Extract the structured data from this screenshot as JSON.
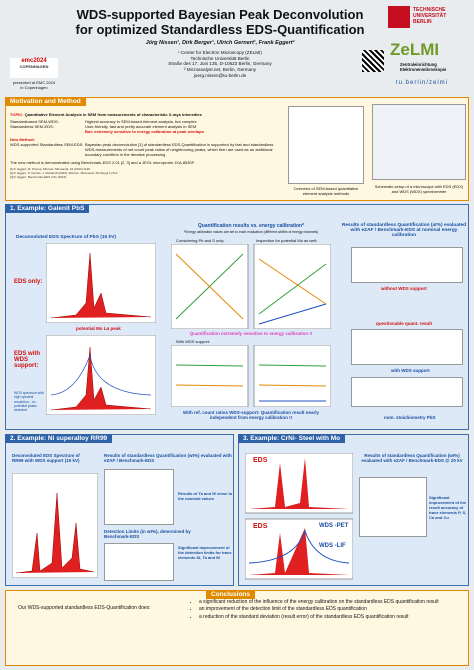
{
  "header": {
    "title_lines": [
      "WDS-supported Bayesian Peak Deconvolution",
      "for optimized Standardless EDS-Quantification"
    ],
    "authors": "Jörg Nissen¹, Dirk Berger¹, Ulrich Gernert¹, Frank Eggert²",
    "affiliations": [
      "¹ Center for Electron Microscopy (ZELMI)",
      "Technische Universität Berlin",
      "Straße des 17. Juni 135, D-10623 Berlin, Germany",
      "² Microanalyst.net, Berlin, Germany",
      "joerg.nissen@tu-berlin.de"
    ],
    "badge": {
      "logo_top": "emc2024",
      "logo_bottom": "COPENHAGEN",
      "text": [
        "presented at EMC 2024",
        "in Copenhagen"
      ]
    },
    "tu_logo": [
      "TECHNISCHE",
      "UNIVERSITÄT",
      "BERLIN"
    ],
    "zelmi": "ZeLMI",
    "zelmi_sub": [
      "Zentraleinrichtung",
      "Elektronenmikroskopie"
    ],
    "url": "tu.berlin/zelmi"
  },
  "motivation": {
    "heading": "Motivation and Method",
    "topic_label": "TOPIC:",
    "topic": "Quantitative Element Analysis in SEM from measurements of characteristic X-rays intensities",
    "methods": [
      {
        "name": "Standardbased SEM-WDS:",
        "text": "Highest accuracy in SEM-based element analysis, but complex"
      },
      {
        "name": "Standardless SEM-EDS:",
        "text": "User-friendly, fast and pretty accurate element analysis in SEM"
      },
      {
        "name": "",
        "text": "But: extremely sensitive to energy calibration at peak overlaps"
      }
    ],
    "new_label": "New Method:",
    "new_name": "WDS-supported Standardless SEM-EDS:",
    "new_text": "Bayesian peak deconvolution [1] of standardless EDS-Quantification is supported by fast and standardless WDS-measurements of net count peak ratios of neighbouring peaks, which then are used as an additional boundary condition in the iterative processing",
    "benchmark": "The new method is demonstrated using Benchmark-EDS 2.01 [2, 3] and a JEOL microprobe JXA-8530F.",
    "refs": [
      "[1] F. Eggert, M. Procop, Microsc. Microanal. 16 (2010) 1136",
      "[2] F. Eggert, P. Camus, J. Ruhlandt (2023), Microsc. Microanal. 29 (Suppl 1) 512",
      "[3] F. Eggert, Benchmark-EDS 2.01 (2024)"
    ],
    "fig_left": "Overview of SEM-based quantitative element analysis methods",
    "fig_right": "Schematic setup of a microscope with EDS (EDX) and WDS (WDX) spectrometer"
  },
  "example1": {
    "heading": "1. Example:   Galenit PbS",
    "spectrum_title": "Deconvoluted EDS Spectrum of PbS (15 kV)",
    "eds_only": "EDS only:",
    "mo_peak": "potential Mo Lα peak",
    "eds_wds": "EDS with WDS support:",
    "wds_note": "WDS spectrum with high spectral resolution - no potential peaks detected",
    "quant_title": "Quantification results vs. energy calibration*",
    "quant_note": "*Energy calibration values are set to each evaluation (different widths of energy channels)",
    "pbs_only": "Considering Pb and S only:",
    "with_mo": "Inspection for potential Mo as well:",
    "sensitive": "Quantification extremely sensitive to energy calibration !!",
    "with_wds": "With WDS support:",
    "independent": "With ref. count ratios WDS-support: Quantification result nearly independent from energy calibration !!",
    "results_title": "Results of standardless Quantification (at%) evaluated with eZAF / Benchmark-EDS at nominal energy calibration",
    "without_wds": "without WDS support",
    "questionable": "questionable quant. result",
    "with_wds_support": "with WDS support",
    "stoich": "nom. stoichiometry PbS"
  },
  "example2": {
    "heading": "2. Example:   Ni superalloy RR99",
    "spectrum_title": "Deconvoluted EDS Spectrum of RR99 with WDS support (15 kV)",
    "results_title": "Results of standardless Quantification (wt%) evaluated with eZAF / Benchmark-EDS",
    "ta_w": "Results of Ta and W close to the nominal values",
    "dl_title": "Detection Limits (in wt%), determined by Benchmark-EDS",
    "dl_note": "Significant improvement of the detection limits for trace elements Si, Ta and W"
  },
  "example3": {
    "heading": "3. Example:   CrNi- Steel with Mo",
    "results_title": "Results of standardless Quantification (wt%) evaluated with eZAF / Benchmark-EDS @ 20 kV",
    "eds": "EDS",
    "wds_pet": "WDS -PET",
    "wds_lif": "WDS -LIF",
    "eds2": "EDS",
    "note": "Significant improvement of the result accuracy of trace elements P, S, Ca and Cu"
  },
  "conclusions": {
    "heading": "Conclusions",
    "lead": "Our WDS-supported standardless EDS-Quantification does:",
    "items": [
      "a significant reduction of the influence of the energy calibration on the standardless EDS quantification result",
      "an improvement of the detection limit of the standardless EDS quantification",
      "a reduction of the standard deviation (result error) of the standardless EDS quantification result"
    ]
  }
}
